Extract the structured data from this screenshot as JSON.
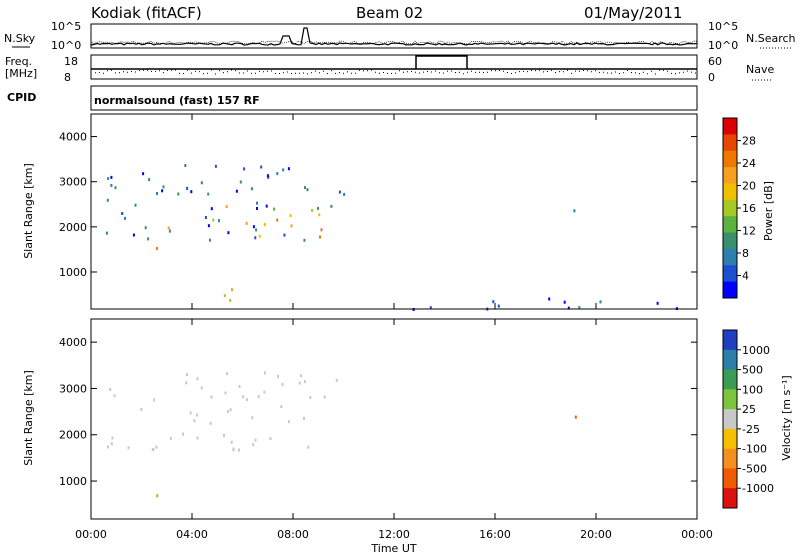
{
  "header": {
    "station": "Kodiak (fitACF)",
    "beam": "Beam 02",
    "date": "01/May/2011"
  },
  "panels": {
    "nsky_label": "N.Sky",
    "nsearch_label": "N.Search",
    "freq_label": "Freq.",
    "freq_unit": "[MHz]",
    "nave_label": "Nave",
    "cpid_label": "CPID",
    "cpid_text": "normalsound (fast) 157 RF",
    "noise_ticks_left": [
      "10^5",
      "10^0"
    ],
    "noise_ticks_right": [
      "10^5",
      "10^0"
    ],
    "freq_ticks": [
      "18",
      "8"
    ],
    "nave_ticks": [
      "60",
      "0"
    ]
  },
  "chart_data": [
    {
      "type": "heatmap",
      "title": "",
      "ylabel": "Slant Range [km]",
      "xlabel": "",
      "x_ticks": [
        "00:00",
        "04:00",
        "08:00",
        "12:00",
        "16:00",
        "20:00",
        "00:00"
      ],
      "y_ticks": [
        1000,
        2000,
        3000,
        4000
      ],
      "ylim": [
        180,
        4500
      ],
      "colorbar": {
        "label": "Power [dB]",
        "ticks": [
          4,
          8,
          12,
          16,
          20,
          24,
          28
        ],
        "colors": [
          "#0000ff",
          "#1a4fd0",
          "#2d7fb0",
          "#3a8f6e",
          "#5ab33c",
          "#a5c925",
          "#f0c000",
          "#f5a020",
          "#f07800",
          "#e84500",
          "#dd0000"
        ]
      },
      "echo_regions": [
        {
          "t0": 0.5,
          "t1": 10.0,
          "r0": 1700,
          "r1": 3400,
          "level": "low"
        },
        {
          "t0": 3.0,
          "t1": 9.5,
          "r0": 1800,
          "r1": 2500,
          "level": "high"
        },
        {
          "t0": 2.5,
          "t1": 3.3,
          "r0": 1450,
          "r1": 1700,
          "level": "peak"
        },
        {
          "t0": 4.5,
          "t1": 7.0,
          "r0": 400,
          "r1": 700,
          "level": "mid"
        },
        {
          "t0": 15.0,
          "t1": 15.2,
          "r0": 1100,
          "r1": 1400,
          "level": "mid"
        },
        {
          "t0": 19.0,
          "t1": 21.0,
          "r0": 2300,
          "r1": 2500,
          "level": "low"
        },
        {
          "t0": 10.0,
          "t1": 24.0,
          "r0": 200,
          "r1": 450,
          "level": "low"
        }
      ]
    },
    {
      "type": "heatmap",
      "title": "",
      "ylabel": "Slant Range [km]",
      "xlabel": "Time UT",
      "x_ticks": [
        "00:00",
        "04:00",
        "08:00",
        "12:00",
        "16:00",
        "20:00",
        "00:00"
      ],
      "y_ticks": [
        1000,
        2000,
        3000,
        4000
      ],
      "ylim": [
        180,
        4500
      ],
      "colorbar": {
        "label": "Velocity [m s⁻¹]",
        "ticks": [
          1000,
          500,
          100,
          25,
          -25,
          -100,
          -500,
          -1000
        ],
        "colors": [
          "#1f3fc0",
          "#2b7fa8",
          "#3c9b55",
          "#7cc43c",
          "#c8c8c8",
          "#f5c000",
          "#f59020",
          "#f05a00",
          "#dd1010"
        ]
      },
      "echo_regions": [
        {
          "t0": 0.5,
          "t1": 10.0,
          "r0": 1700,
          "r1": 3400,
          "level": "ground"
        },
        {
          "t0": 2.5,
          "t1": 3.4,
          "r0": 600,
          "r1": 1000,
          "level": "away"
        },
        {
          "t0": 19.0,
          "t1": 21.0,
          "r0": 2300,
          "r1": 2500,
          "level": "away"
        },
        {
          "t0": 15.0,
          "t1": 15.2,
          "r0": 1100,
          "r1": 1400,
          "level": "toward"
        }
      ]
    }
  ]
}
